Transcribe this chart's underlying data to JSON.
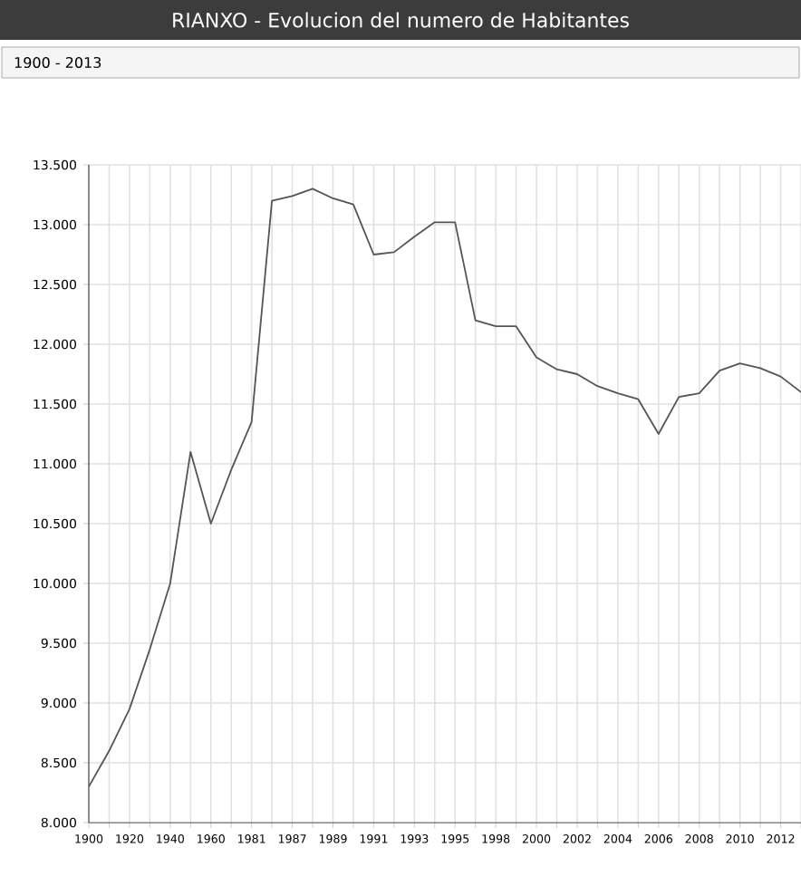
{
  "chart_data": {
    "type": "line",
    "title": "RIANXO - Evolucion del numero de Habitantes",
    "subtitle": "1900 - 2013",
    "categories": [
      "1900",
      null,
      "1920",
      null,
      "1940",
      null,
      "1960",
      null,
      "1981",
      null,
      "1987",
      null,
      "1989",
      null,
      "1991",
      null,
      "1993",
      null,
      "1995",
      null,
      "1998",
      null,
      "2000",
      null,
      "2002",
      null,
      "2004",
      null,
      "2006",
      null,
      "2008",
      null,
      "2010",
      null,
      "2012",
      null
    ],
    "series": [
      {
        "color": "#555555",
        "values": [
          8300,
          8600,
          8950,
          9450,
          10000,
          11100,
          10500,
          10950,
          11350,
          13200,
          13240,
          13300,
          13220,
          13170,
          12750,
          12770,
          12900,
          13020,
          13020,
          12200,
          12150,
          12150,
          11890,
          11790,
          11750,
          11650,
          11590,
          11540,
          11250,
          11560,
          11590,
          11780,
          11840,
          11800,
          11730,
          11600
        ]
      }
    ],
    "ylim": [
      8000,
      13500
    ],
    "yticks": [
      {
        "value": 8000,
        "label": "8.000"
      },
      {
        "value": 8500,
        "label": "8.500"
      },
      {
        "value": 9000,
        "label": "9.000"
      },
      {
        "value": 9500,
        "label": "9.500"
      },
      {
        "value": 10000,
        "label": "10.000"
      },
      {
        "value": 10500,
        "label": "10.500"
      },
      {
        "value": 11000,
        "label": "11.000"
      },
      {
        "value": 11500,
        "label": "11.500"
      },
      {
        "value": 12000,
        "label": "12.000"
      },
      {
        "value": 12500,
        "label": "12.500"
      },
      {
        "value": 13000,
        "label": "13.000"
      },
      {
        "value": 13500,
        "label": "13.500"
      }
    ],
    "grid": true
  }
}
